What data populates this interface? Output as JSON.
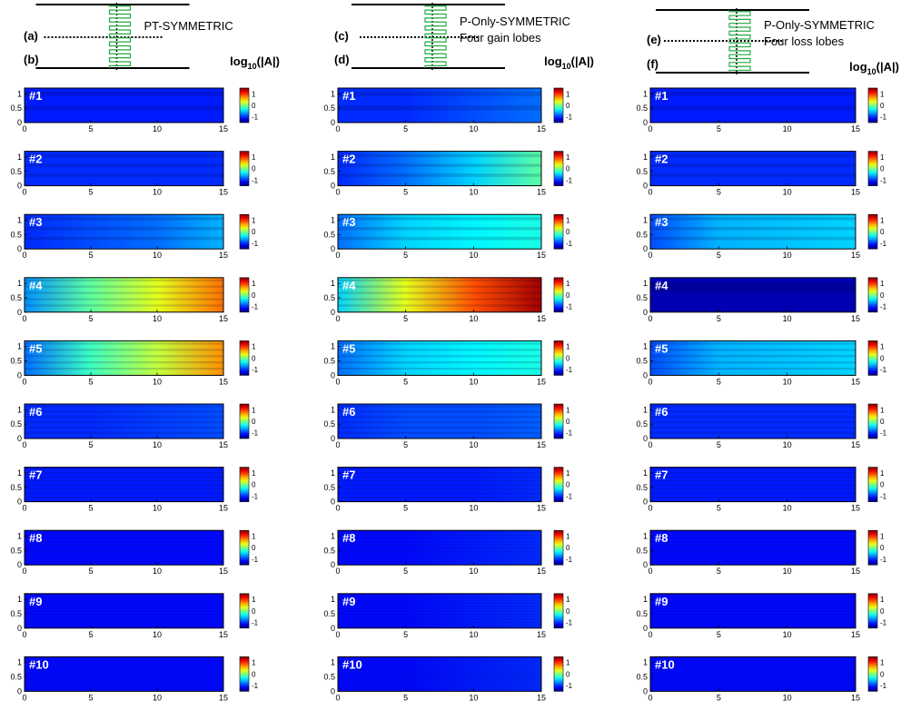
{
  "figure": {
    "header_label": "log10(|A|)",
    "header_main": "log",
    "header_sub": "10",
    "header_tail": "(|A|)"
  },
  "chart_data": [
    {
      "type": "heatmap",
      "column": "left",
      "panel_letters": [
        "(a)",
        "(b)"
      ],
      "schematic_text": [
        "PT-SYMMETRIC"
      ],
      "show_header": true,
      "x": [
        0,
        5,
        10,
        15
      ],
      "y": [
        0,
        0.5,
        1
      ],
      "xlim": [
        0,
        15
      ],
      "ylim": [
        0,
        1.2
      ],
      "colorbar_ticks": [
        1,
        0,
        -1
      ],
      "clim": [
        -1.5,
        1.5
      ],
      "modes": [
        {
          "label": "#1",
          "level": [
            -1.05,
            -1.05,
            -1.05,
            -1.05
          ],
          "stripes": 2
        },
        {
          "label": "#2",
          "level": [
            -1.0,
            -1.0,
            -1.0,
            -1.0
          ],
          "stripes": 3
        },
        {
          "label": "#3",
          "level": [
            -1.0,
            -0.9,
            -0.8,
            -0.6
          ],
          "stripes": 3
        },
        {
          "label": "#4",
          "level": [
            -0.7,
            -0.1,
            0.3,
            0.8
          ],
          "stripes": 5
        },
        {
          "label": "#5",
          "level": [
            -0.8,
            -0.2,
            0.2,
            0.7
          ],
          "stripes": 5
        },
        {
          "label": "#6",
          "level": [
            -1.0,
            -1.0,
            -0.95,
            -0.9
          ],
          "stripes": 6
        },
        {
          "label": "#7",
          "level": [
            -1.05,
            -1.05,
            -1.05,
            -1.05
          ],
          "stripes": 8
        },
        {
          "label": "#8",
          "level": [
            -1.1,
            -1.1,
            -1.1,
            -1.1
          ],
          "stripes": 10
        },
        {
          "label": "#9",
          "level": [
            -1.1,
            -1.1,
            -1.1,
            -1.1
          ],
          "stripes": 12
        },
        {
          "label": "#10",
          "level": [
            -1.1,
            -1.1,
            -1.1,
            -1.1
          ],
          "stripes": 14
        }
      ]
    },
    {
      "type": "heatmap",
      "column": "middle",
      "panel_letters": [
        "(c)",
        "(d)"
      ],
      "schematic_text": [
        "P-Only-SYMMETRIC",
        "Four gain lobes"
      ],
      "show_header": true,
      "x": [
        0,
        5,
        10,
        15
      ],
      "y": [
        0,
        0.5,
        1
      ],
      "xlim": [
        0,
        15
      ],
      "ylim": [
        0,
        1.2
      ],
      "colorbar_ticks": [
        1,
        0,
        -1
      ],
      "clim": [
        -1.5,
        1.5
      ],
      "modes": [
        {
          "label": "#1",
          "level": [
            -1.0,
            -1.0,
            -0.9,
            -0.8
          ],
          "stripes": 2
        },
        {
          "label": "#2",
          "level": [
            -1.0,
            -0.8,
            -0.5,
            -0.1
          ],
          "stripes": 3
        },
        {
          "label": "#3",
          "level": [
            -0.8,
            -0.5,
            -0.4,
            -0.3
          ],
          "stripes": 3
        },
        {
          "label": "#4",
          "level": [
            -0.5,
            0.3,
            0.9,
            1.4
          ],
          "stripes": 5
        },
        {
          "label": "#5",
          "level": [
            -0.8,
            -0.5,
            -0.4,
            -0.3
          ],
          "stripes": 5
        },
        {
          "label": "#6",
          "level": [
            -1.0,
            -0.9,
            -0.9,
            -0.85
          ],
          "stripes": 6
        },
        {
          "label": "#7",
          "level": [
            -1.05,
            -1.05,
            -1.05,
            -1.0
          ],
          "stripes": 8
        },
        {
          "label": "#8",
          "level": [
            -1.1,
            -1.1,
            -1.05,
            -1.0
          ],
          "stripes": 10
        },
        {
          "label": "#9",
          "level": [
            -1.1,
            -1.1,
            -1.05,
            -1.0
          ],
          "stripes": 12
        },
        {
          "label": "#10",
          "level": [
            -1.1,
            -1.1,
            -1.05,
            -1.0
          ],
          "stripes": 14
        }
      ]
    },
    {
      "type": "heatmap",
      "column": "right",
      "panel_letters": [
        "(e)",
        "(f)"
      ],
      "schematic_text": [
        "P-Only-SYMMETRIC",
        "Four loss lobes"
      ],
      "show_header": true,
      "x": [
        0,
        5,
        10,
        15
      ],
      "y": [
        0,
        0.5,
        1
      ],
      "xlim": [
        0,
        15
      ],
      "ylim": [
        0,
        1.2
      ],
      "colorbar_ticks": [
        1,
        0,
        -1
      ],
      "clim": [
        -1.5,
        1.5
      ],
      "modes": [
        {
          "label": "#1",
          "level": [
            -1.05,
            -1.05,
            -1.05,
            -1.05
          ],
          "stripes": 2
        },
        {
          "label": "#2",
          "level": [
            -1.0,
            -1.0,
            -1.0,
            -1.0
          ],
          "stripes": 3
        },
        {
          "label": "#3",
          "level": [
            -0.9,
            -0.6,
            -0.55,
            -0.5
          ],
          "stripes": 3
        },
        {
          "label": "#4",
          "level": [
            -1.35,
            -1.35,
            -1.35,
            -1.35
          ],
          "stripes": 1
        },
        {
          "label": "#5",
          "level": [
            -0.9,
            -0.6,
            -0.55,
            -0.5
          ],
          "stripes": 5
        },
        {
          "label": "#6",
          "level": [
            -1.0,
            -1.0,
            -1.0,
            -1.0
          ],
          "stripes": 6
        },
        {
          "label": "#7",
          "level": [
            -1.05,
            -1.05,
            -1.05,
            -1.05
          ],
          "stripes": 8
        },
        {
          "label": "#8",
          "level": [
            -1.1,
            -1.1,
            -1.1,
            -1.1
          ],
          "stripes": 10
        },
        {
          "label": "#9",
          "level": [
            -1.1,
            -1.1,
            -1.1,
            -1.1
          ],
          "stripes": 12
        },
        {
          "label": "#10",
          "level": [
            -1.1,
            -1.1,
            -1.1,
            -1.1
          ],
          "stripes": 14
        }
      ]
    }
  ]
}
